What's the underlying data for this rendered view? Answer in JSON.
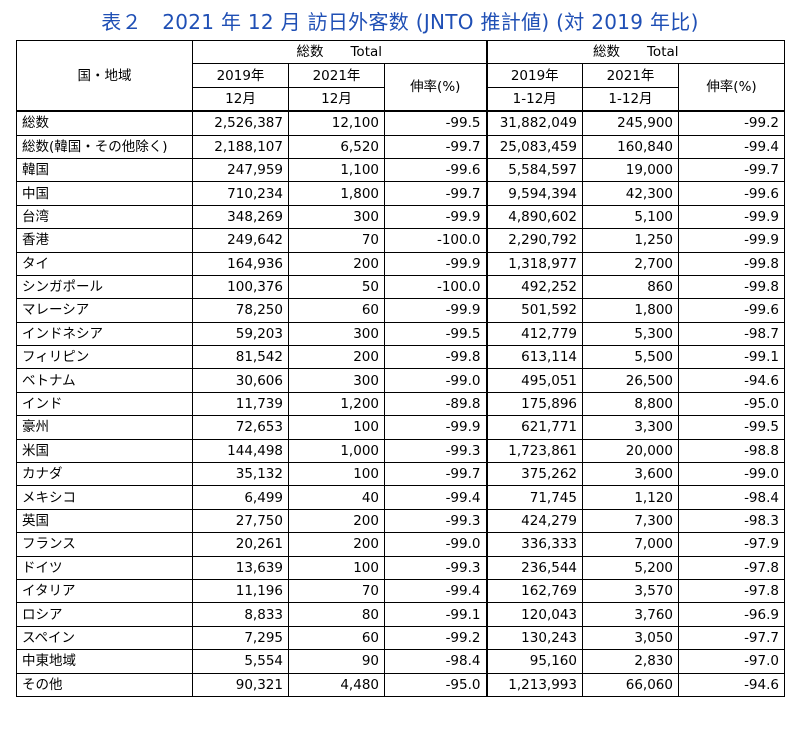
{
  "title": "表２　2021 年 12 月  訪日外客数  (JNTO 推計値) (対 2019 年比)",
  "header": {
    "region": "国・地域",
    "total_left": "総数　　Total",
    "total_right": "総数　　Total",
    "y2019_left": "2019年",
    "y2021_left": "2021年",
    "m12_2019": "12月",
    "m12_2021": "12月",
    "growth_left": "伸率(%)",
    "y2019_right": "2019年",
    "y2021_right": "2021年",
    "range_2019": "1-12月",
    "range_2021": "1-12月",
    "growth_right": "伸率(%)"
  },
  "rows": [
    {
      "name": "総数",
      "d2019": "2,526,387",
      "d2021": "12,100",
      "dg": "-99.5",
      "y2019": "31,882,049",
      "y2021": "245,900",
      "yg": "-99.2"
    },
    {
      "name": "総数(韓国・その他除く)",
      "d2019": "2,188,107",
      "d2021": "6,520",
      "dg": "-99.7",
      "y2019": "25,083,459",
      "y2021": "160,840",
      "yg": "-99.4"
    },
    {
      "name": "韓国",
      "d2019": "247,959",
      "d2021": "1,100",
      "dg": "-99.6",
      "y2019": "5,584,597",
      "y2021": "19,000",
      "yg": "-99.7"
    },
    {
      "name": "中国",
      "d2019": "710,234",
      "d2021": "1,800",
      "dg": "-99.7",
      "y2019": "9,594,394",
      "y2021": "42,300",
      "yg": "-99.6"
    },
    {
      "name": "台湾",
      "d2019": "348,269",
      "d2021": "300",
      "dg": "-99.9",
      "y2019": "4,890,602",
      "y2021": "5,100",
      "yg": "-99.9"
    },
    {
      "name": "香港",
      "d2019": "249,642",
      "d2021": "70",
      "dg": "-100.0",
      "y2019": "2,290,792",
      "y2021": "1,250",
      "yg": "-99.9"
    },
    {
      "name": "タイ",
      "d2019": "164,936",
      "d2021": "200",
      "dg": "-99.9",
      "y2019": "1,318,977",
      "y2021": "2,700",
      "yg": "-99.8"
    },
    {
      "name": "シンガポール",
      "d2019": "100,376",
      "d2021": "50",
      "dg": "-100.0",
      "y2019": "492,252",
      "y2021": "860",
      "yg": "-99.8"
    },
    {
      "name": "マレーシア",
      "d2019": "78,250",
      "d2021": "60",
      "dg": "-99.9",
      "y2019": "501,592",
      "y2021": "1,800",
      "yg": "-99.6"
    },
    {
      "name": "インドネシア",
      "d2019": "59,203",
      "d2021": "300",
      "dg": "-99.5",
      "y2019": "412,779",
      "y2021": "5,300",
      "yg": "-98.7"
    },
    {
      "name": "フィリピン",
      "d2019": "81,542",
      "d2021": "200",
      "dg": "-99.8",
      "y2019": "613,114",
      "y2021": "5,500",
      "yg": "-99.1"
    },
    {
      "name": "ベトナム",
      "d2019": "30,606",
      "d2021": "300",
      "dg": "-99.0",
      "y2019": "495,051",
      "y2021": "26,500",
      "yg": "-94.6"
    },
    {
      "name": "インド",
      "d2019": "11,739",
      "d2021": "1,200",
      "dg": "-89.8",
      "y2019": "175,896",
      "y2021": "8,800",
      "yg": "-95.0"
    },
    {
      "name": "豪州",
      "d2019": "72,653",
      "d2021": "100",
      "dg": "-99.9",
      "y2019": "621,771",
      "y2021": "3,300",
      "yg": "-99.5"
    },
    {
      "name": "米国",
      "d2019": "144,498",
      "d2021": "1,000",
      "dg": "-99.3",
      "y2019": "1,723,861",
      "y2021": "20,000",
      "yg": "-98.8"
    },
    {
      "name": "カナダ",
      "d2019": "35,132",
      "d2021": "100",
      "dg": "-99.7",
      "y2019": "375,262",
      "y2021": "3,600",
      "yg": "-99.0"
    },
    {
      "name": "メキシコ",
      "d2019": "6,499",
      "d2021": "40",
      "dg": "-99.4",
      "y2019": "71,745",
      "y2021": "1,120",
      "yg": "-98.4"
    },
    {
      "name": "英国",
      "d2019": "27,750",
      "d2021": "200",
      "dg": "-99.3",
      "y2019": "424,279",
      "y2021": "7,300",
      "yg": "-98.3"
    },
    {
      "name": "フランス",
      "d2019": "20,261",
      "d2021": "200",
      "dg": "-99.0",
      "y2019": "336,333",
      "y2021": "7,000",
      "yg": "-97.9"
    },
    {
      "name": "ドイツ",
      "d2019": "13,639",
      "d2021": "100",
      "dg": "-99.3",
      "y2019": "236,544",
      "y2021": "5,200",
      "yg": "-97.8"
    },
    {
      "name": "イタリア",
      "d2019": "11,196",
      "d2021": "70",
      "dg": "-99.4",
      "y2019": "162,769",
      "y2021": "3,570",
      "yg": "-97.8"
    },
    {
      "name": "ロシア",
      "d2019": "8,833",
      "d2021": "80",
      "dg": "-99.1",
      "y2019": "120,043",
      "y2021": "3,760",
      "yg": "-96.9"
    },
    {
      "name": "スペイン",
      "d2019": "7,295",
      "d2021": "60",
      "dg": "-99.2",
      "y2019": "130,243",
      "y2021": "3,050",
      "yg": "-97.7"
    },
    {
      "name": "中東地域",
      "d2019": "5,554",
      "d2021": "90",
      "dg": "-98.4",
      "y2019": "95,160",
      "y2021": "2,830",
      "yg": "-97.0"
    },
    {
      "name": "その他",
      "d2019": "90,321",
      "d2021": "4,480",
      "dg": "-95.0",
      "y2019": "1,213,993",
      "y2021": "66,060",
      "yg": "-94.6"
    }
  ]
}
